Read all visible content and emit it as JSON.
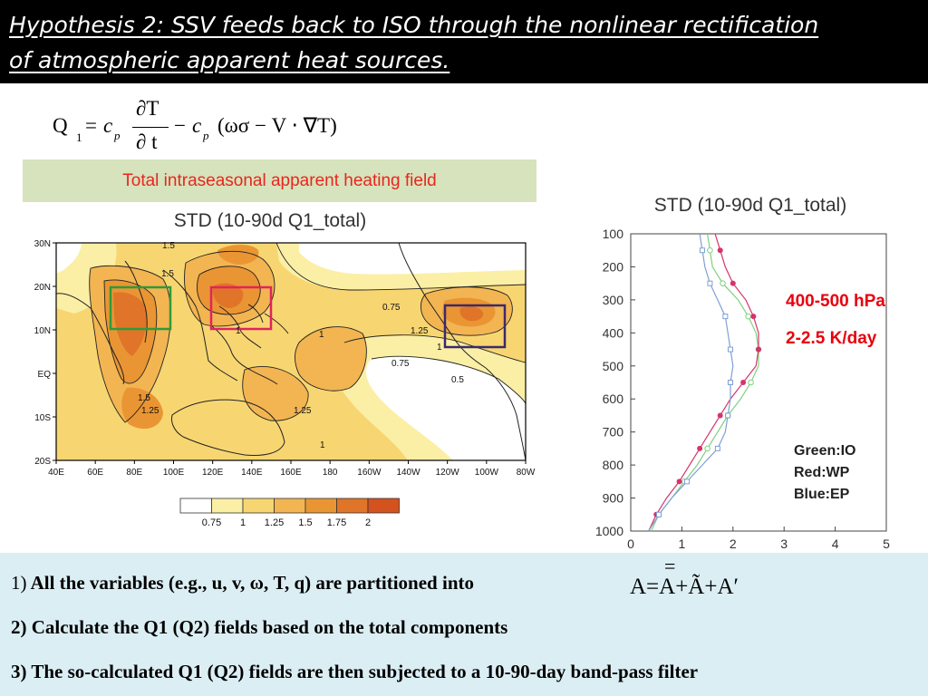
{
  "header": {
    "line1": "Hypothesis 2: SSV feeds back to ISO through the nonlinear rectification",
    "line2": "of atmospheric apparent heat sources."
  },
  "formula": {
    "lhs": "Q",
    "lhs_sub": "1",
    "equals": "=",
    "cp": "c",
    "cp_sub": "p",
    "num": "∂T",
    "den": "∂ t",
    "minus": "−",
    "paren": "(ωσ − V ⋅ ∇T)"
  },
  "banner": {
    "text": "Total intraseasonal apparent heating field"
  },
  "map": {
    "title": "STD (10-90d Q1_total)",
    "lat_ticks": [
      "30N",
      "20N",
      "10N",
      "EQ",
      "10S",
      "20S"
    ],
    "lon_ticks": [
      "40E",
      "60E",
      "80E",
      "100E",
      "120E",
      "140E",
      "160E",
      "180",
      "160W",
      "140W",
      "120W",
      "100W",
      "80W"
    ],
    "contour_labels": [
      "1.5",
      "1.5",
      "1",
      "0.75",
      "1.25",
      "1",
      "0.75",
      "0.5",
      "1.5",
      "1.25",
      "1.25",
      "1",
      "1"
    ],
    "boxes": [
      {
        "region": "IO",
        "color": "#2e9a3a"
      },
      {
        "region": "WP",
        "color": "#e0245e"
      },
      {
        "region": "EP",
        "color": "#3b2a6b"
      }
    ]
  },
  "legend": {
    "levels": [
      "0.75",
      "1",
      "1.25",
      "1.5",
      "1.75",
      "2"
    ],
    "colors": [
      "#ffffff",
      "#fbefa6",
      "#f7d672",
      "#f2b552",
      "#ea9533",
      "#e07428",
      "#d4521e"
    ]
  },
  "chart_data": {
    "type": "line",
    "title": "STD (10-90d Q1_total)",
    "xlabel": "",
    "ylabel": "",
    "xlim": [
      0,
      5
    ],
    "ylim": [
      1000,
      100
    ],
    "xticks": [
      "0",
      "1",
      "2",
      "3",
      "4",
      "5"
    ],
    "yticks": [
      "100",
      "200",
      "300",
      "400",
      "500",
      "600",
      "700",
      "800",
      "900",
      "1000"
    ],
    "y": [
      100,
      150,
      200,
      250,
      300,
      350,
      400,
      450,
      500,
      550,
      600,
      650,
      700,
      750,
      800,
      850,
      900,
      950,
      1000
    ],
    "series": [
      {
        "name": "Green:IO",
        "color": "#7fd17f",
        "marker": "circle-open",
        "values": [
          1.5,
          1.55,
          1.6,
          1.8,
          2.1,
          2.3,
          2.45,
          2.5,
          2.5,
          2.35,
          2.15,
          1.9,
          1.7,
          1.5,
          1.3,
          1.05,
          0.8,
          0.55,
          0.4
        ]
      },
      {
        "name": "Red:WP",
        "color": "#d6336c",
        "marker": "circle-filled",
        "values": [
          1.65,
          1.75,
          1.85,
          2.0,
          2.25,
          2.4,
          2.5,
          2.5,
          2.45,
          2.2,
          1.95,
          1.75,
          1.55,
          1.35,
          1.15,
          0.95,
          0.7,
          0.5,
          0.35
        ]
      },
      {
        "name": "Blue:EP",
        "color": "#7f9fd6",
        "marker": "square-open",
        "values": [
          1.35,
          1.4,
          1.45,
          1.55,
          1.7,
          1.85,
          1.9,
          1.95,
          2.0,
          1.95,
          1.95,
          1.9,
          1.85,
          1.7,
          1.4,
          1.1,
          0.8,
          0.55,
          0.35
        ]
      }
    ],
    "legend_text": [
      "Green:IO",
      "Red:WP",
      "Blue:EP"
    ]
  },
  "annotations": {
    "level": "400-500 hPa",
    "rate": "2-2.5 K/day"
  },
  "bottom": {
    "l1_num": "1)",
    "l1_text": " All the variables (e.g., u, v, ω, T, q) are partitioned into",
    "formula": "A=A+Ã+A′",
    "formula_bar": "=",
    "l2": "2) Calculate the Q1 (Q2) fields based on the total components",
    "l3": "3) The so-calculated Q1 (Q2) fields are then subjected to a 10-90-day band-pass filter"
  }
}
